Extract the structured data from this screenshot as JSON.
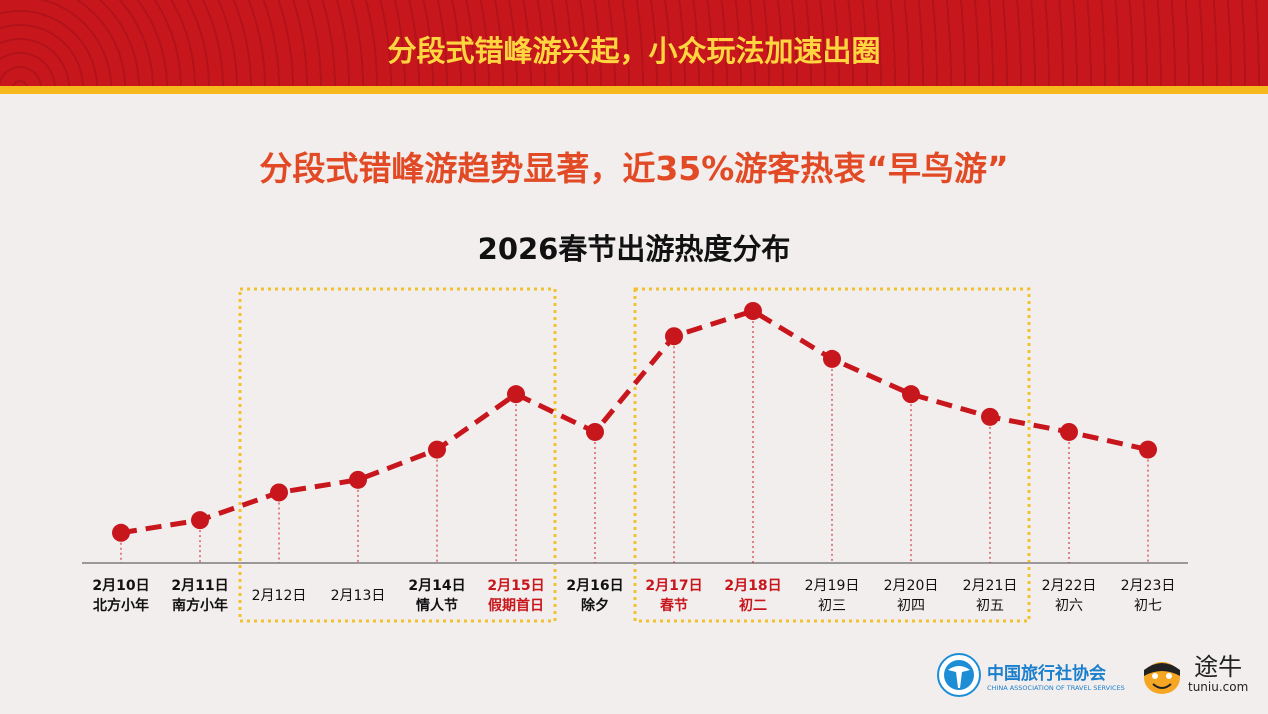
{
  "header": {
    "title": "分段式错峰游兴起，小众玩法加速出圈"
  },
  "subtitle": "分段式错峰游趋势显著，近35%游客热衷“早鸟游”",
  "chart_data": {
    "type": "line",
    "title": "2026春节出游热度分布",
    "categories": [
      {
        "date": "2月10日",
        "note": "北方小年",
        "bold": true,
        "red": false
      },
      {
        "date": "2月11日",
        "note": "南方小年",
        "bold": true,
        "red": false
      },
      {
        "date": "2月12日",
        "note": "",
        "bold": false,
        "red": false
      },
      {
        "date": "2月13日",
        "note": "",
        "bold": false,
        "red": false
      },
      {
        "date": "2月14日",
        "note": "情人节",
        "bold": true,
        "red": false
      },
      {
        "date": "2月15日",
        "note": "假期首日",
        "bold": true,
        "red": true
      },
      {
        "date": "2月16日",
        "note": "除夕",
        "bold": true,
        "red": false
      },
      {
        "date": "2月17日",
        "note": "春节",
        "bold": true,
        "red": true
      },
      {
        "date": "2月18日",
        "note": "初二",
        "bold": true,
        "red": true
      },
      {
        "date": "2月19日",
        "note": "初三",
        "bold": false,
        "red": false
      },
      {
        "date": "2月20日",
        "note": "初四",
        "bold": false,
        "red": false
      },
      {
        "date": "2月21日",
        "note": "初五",
        "bold": false,
        "red": false
      },
      {
        "date": "2月22日",
        "note": "初六",
        "bold": false,
        "red": false
      },
      {
        "date": "2月23日",
        "note": "初七",
        "bold": false,
        "red": false
      }
    ],
    "values": [
      12,
      17,
      28,
      33,
      45,
      67,
      52,
      90,
      100,
      81,
      67,
      58,
      52,
      45
    ],
    "ylim": [
      0,
      100
    ],
    "y_axis_shown": false,
    "grid": false,
    "highlight_ranges": [
      [
        "2月12日",
        "2月15日"
      ],
      [
        "2月17日",
        "2月21日"
      ]
    ],
    "colors": {
      "line": "#c8161d",
      "highlight_box": "#f2c12e",
      "red_label": "#c8161d"
    }
  },
  "logos": {
    "cats_name": "中国旅行社协会",
    "cats_en": "CHINA ASSOCIATION OF TRAVEL SERVICES",
    "tuniu_name": "途牛",
    "tuniu_domain": "tuniu.com"
  }
}
